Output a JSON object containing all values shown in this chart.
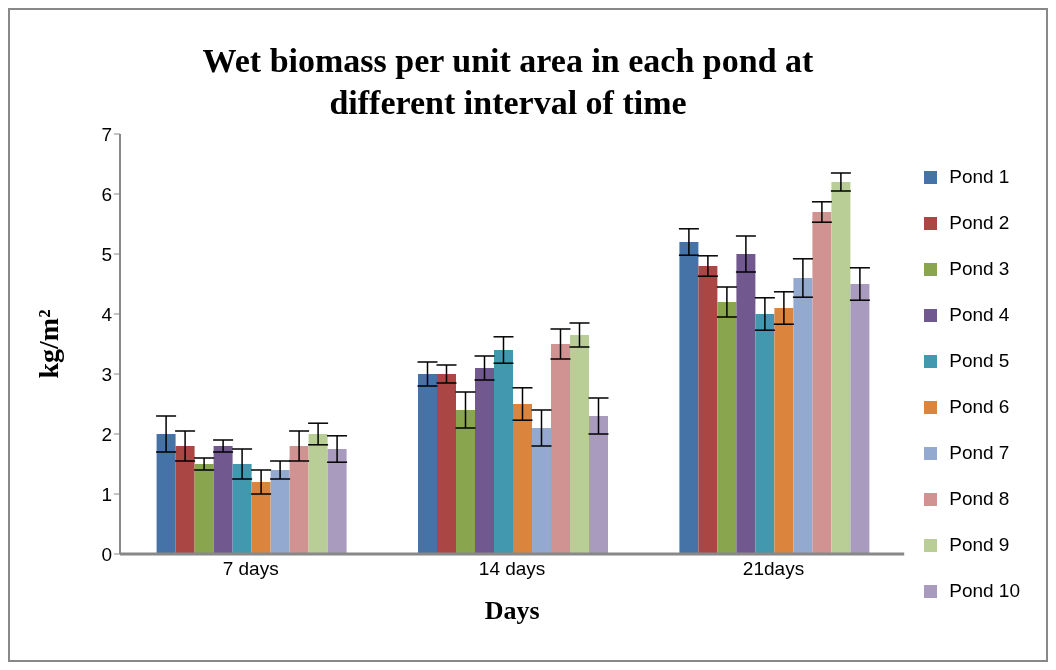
{
  "chart_data": {
    "type": "bar",
    "title": "Wet biomass per unit area in each pond at different interval of time",
    "xlabel": "Days",
    "ylabel": "kg/m²",
    "categories": [
      "7 days",
      "14 days",
      "21days"
    ],
    "series": [
      {
        "name": "Pond 1",
        "color": "#4572a7",
        "values": [
          2.0,
          3.0,
          5.2
        ],
        "errors": [
          0.3,
          0.2,
          0.22
        ]
      },
      {
        "name": "Pond 2",
        "color": "#aa4643",
        "values": [
          1.8,
          3.0,
          4.8
        ],
        "errors": [
          0.25,
          0.15,
          0.17
        ]
      },
      {
        "name": "Pond 3",
        "color": "#89a54e",
        "values": [
          1.5,
          2.4,
          4.2
        ],
        "errors": [
          0.1,
          0.3,
          0.25
        ]
      },
      {
        "name": "Pond 4",
        "color": "#71588f",
        "values": [
          1.8,
          3.1,
          5.0
        ],
        "errors": [
          0.1,
          0.2,
          0.3
        ]
      },
      {
        "name": "Pond 5",
        "color": "#4198af",
        "values": [
          1.5,
          3.4,
          4.0
        ],
        "errors": [
          0.25,
          0.22,
          0.27
        ]
      },
      {
        "name": "Pond 6",
        "color": "#db843d",
        "values": [
          1.2,
          2.5,
          4.1
        ],
        "errors": [
          0.2,
          0.27,
          0.27
        ]
      },
      {
        "name": "Pond 7",
        "color": "#93a9cf",
        "values": [
          1.4,
          2.1,
          4.6
        ],
        "errors": [
          0.15,
          0.3,
          0.32
        ]
      },
      {
        "name": "Pond 8",
        "color": "#d19392",
        "values": [
          1.8,
          3.5,
          5.7
        ],
        "errors": [
          0.25,
          0.25,
          0.17
        ]
      },
      {
        "name": "Pond 9",
        "color": "#b9cd96",
        "values": [
          2.0,
          3.65,
          6.2
        ],
        "errors": [
          0.18,
          0.2,
          0.15
        ]
      },
      {
        "name": "Pond 10",
        "color": "#a99bbd",
        "values": [
          1.75,
          2.3,
          4.5
        ],
        "errors": [
          0.22,
          0.3,
          0.27
        ]
      }
    ],
    "ylim": [
      0,
      7
    ],
    "yticks": [
      0,
      1,
      2,
      3,
      4,
      5,
      6,
      7
    ],
    "grid": false,
    "legend": "right"
  }
}
